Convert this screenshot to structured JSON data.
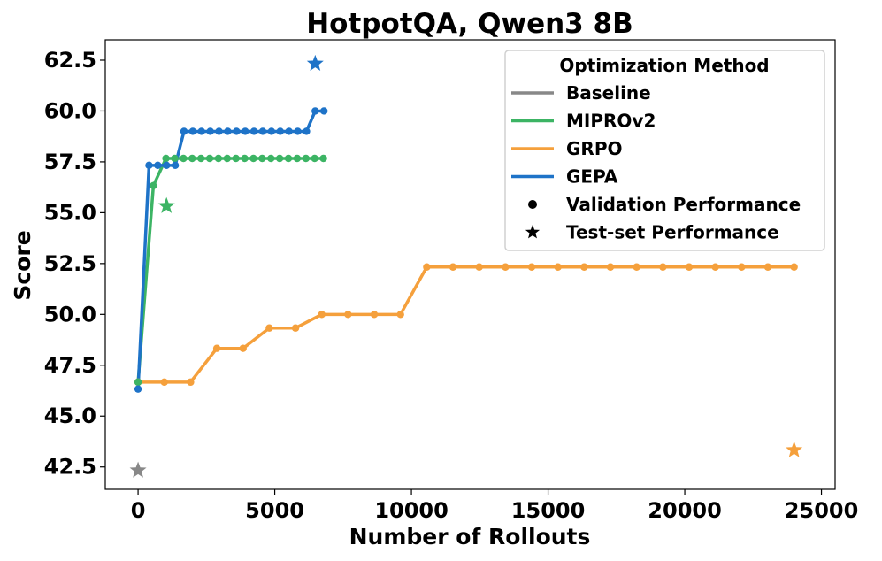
{
  "chart_data": {
    "type": "line",
    "title": "HotpotQA, Qwen3 8B",
    "xlabel": "Number of Rollouts",
    "ylabel": "Score",
    "xlim": [
      -1200,
      25500
    ],
    "ylim": [
      41.4,
      63.5
    ],
    "xticks": [
      0,
      5000,
      10000,
      15000,
      20000,
      25000
    ],
    "xtick_labels": [
      "0",
      "5000",
      "10000",
      "15000",
      "20000",
      "25000"
    ],
    "yticks": [
      42.5,
      45.0,
      47.5,
      50.0,
      52.5,
      55.0,
      57.5,
      60.0,
      62.5
    ],
    "ytick_labels": [
      "42.5",
      "45.0",
      "47.5",
      "50.0",
      "52.5",
      "55.0",
      "57.5",
      "60.0",
      "62.5"
    ],
    "grid": false,
    "legend_title": "Optimization Method",
    "legend_position": "top-right",
    "legend": [
      {
        "label": "Baseline",
        "kind": "line",
        "color": "#888888"
      },
      {
        "label": "MIPROv2",
        "kind": "line",
        "color": "#3cb464"
      },
      {
        "label": "GRPO",
        "kind": "line",
        "color": "#f5a03c"
      },
      {
        "label": "GEPA",
        "kind": "line",
        "color": "#1e73c8"
      },
      {
        "label": "Validation Performance",
        "kind": "dot",
        "color": "#000000"
      },
      {
        "label": "Test-set Performance",
        "kind": "star",
        "color": "#000000"
      }
    ],
    "series": [
      {
        "name": "GRPO",
        "color": "#f5a03c",
        "x": [
          0,
          960,
          1920,
          2880,
          3840,
          4800,
          5760,
          6720,
          7680,
          8640,
          9600,
          10560,
          11520,
          12480,
          13440,
          14400,
          15360,
          16320,
          17280,
          18240,
          19200,
          20160,
          21120,
          22080,
          23040,
          24000
        ],
        "y": [
          46.67,
          46.67,
          46.67,
          48.33,
          48.33,
          49.33,
          49.33,
          50.0,
          50.0,
          50.0,
          50.0,
          52.33,
          52.33,
          52.33,
          52.33,
          52.33,
          52.33,
          52.33,
          52.33,
          52.33,
          52.33,
          52.33,
          52.33,
          52.33,
          52.33,
          52.33
        ]
      },
      {
        "name": "MIPROv2",
        "color": "#3cb464",
        "x": [
          0,
          560,
          1020,
          1340,
          1660,
          1980,
          2300,
          2620,
          2940,
          3260,
          3580,
          3900,
          4220,
          4540,
          4860,
          5180,
          5500,
          5820,
          6140,
          6460,
          6780
        ],
        "y": [
          46.67,
          56.33,
          57.67,
          57.67,
          57.67,
          57.67,
          57.67,
          57.67,
          57.67,
          57.67,
          57.67,
          57.67,
          57.67,
          57.67,
          57.67,
          57.67,
          57.67,
          57.67,
          57.67,
          57.67,
          57.67
        ]
      },
      {
        "name": "GEPA",
        "color": "#1e73c8",
        "x": [
          0,
          400,
          720,
          1040,
          1360,
          1680,
          2000,
          2320,
          2640,
          2960,
          3280,
          3600,
          3920,
          4240,
          4560,
          4880,
          5200,
          5520,
          5840,
          6160,
          6480,
          6800
        ],
        "y": [
          46.33,
          57.33,
          57.33,
          57.33,
          57.33,
          59.0,
          59.0,
          59.0,
          59.0,
          59.0,
          59.0,
          59.0,
          59.0,
          59.0,
          59.0,
          59.0,
          59.0,
          59.0,
          59.0,
          59.0,
          60.0,
          60.0
        ]
      }
    ],
    "test_points": [
      {
        "name": "Baseline",
        "x": 0,
        "y": 42.33,
        "color": "#888888"
      },
      {
        "name": "MIPROv2",
        "x": 1040,
        "y": 55.33,
        "color": "#3cb464"
      },
      {
        "name": "GEPA",
        "x": 6480,
        "y": 62.33,
        "color": "#1e73c8"
      },
      {
        "name": "GRPO",
        "x": 24000,
        "y": 43.33,
        "color": "#f5a03c"
      }
    ]
  }
}
